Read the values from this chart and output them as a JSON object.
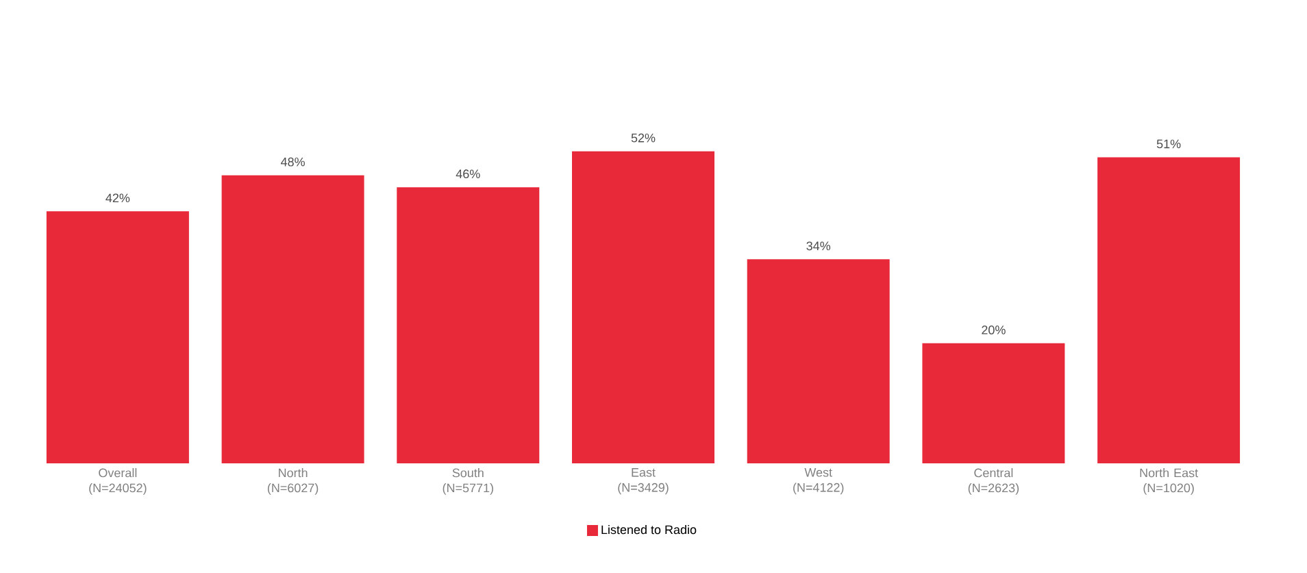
{
  "chart_data": {
    "type": "bar",
    "categories": [
      "Overall (N=24052)",
      "North (N=6027)",
      "South (N=5771)",
      "East (N=3429)",
      "West (N=4122)",
      "Central (N=2623)",
      "North East (N=1020)"
    ],
    "series": [
      {
        "name": "Listened to Radio",
        "color": "#e8293a",
        "values": [
          42,
          48,
          46,
          52,
          34,
          20,
          51
        ],
        "value_labels": [
          "42%",
          "48%",
          "46%",
          "52%",
          "34%",
          "20%",
          "51%"
        ]
      }
    ],
    "tick_labels": "x",
    "legend": "bottom"
  }
}
